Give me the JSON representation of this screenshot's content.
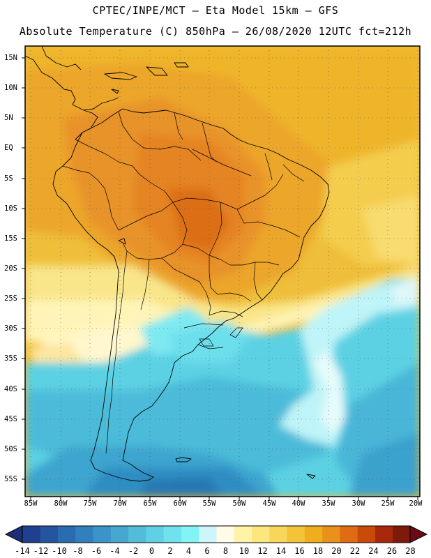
{
  "header": {
    "line1": "CPTEC/INPE/MCT –  Eta Model 15km – GFS",
    "line2": "Absolute Temperature (C) 850hPa – 26/08/2020 12UTC fct=212h"
  },
  "map": {
    "lat_labels": [
      "15N",
      "10N",
      "5N",
      "EQ",
      "5S",
      "10S",
      "15S",
      "20S",
      "25S",
      "30S",
      "35S",
      "40S",
      "45S",
      "50S",
      "55S"
    ],
    "lon_labels": [
      "85W",
      "80W",
      "75W",
      "70W",
      "65W",
      "60W",
      "55W",
      "50W",
      "45W",
      "40W",
      "35W",
      "30W",
      "25W",
      "20W"
    ]
  },
  "colorbar": {
    "labels": [
      "-14",
      "-12",
      "-10",
      "-8",
      "-6",
      "-4",
      "-2",
      "0",
      "2",
      "4",
      "6",
      "8",
      "10",
      "12",
      "14",
      "16",
      "18",
      "20",
      "22",
      "24",
      "26",
      "28"
    ],
    "colors": [
      "#1f3f8f",
      "#2456a0",
      "#2a6cb0",
      "#3180bd",
      "#3b94c8",
      "#46a8d1",
      "#52bddb",
      "#5fd0e5",
      "#6ee3ee",
      "#82f4f6",
      "#ccf6fa",
      "#fffbe6",
      "#fff3a8",
      "#fce77e",
      "#f7d65a",
      "#f3c438",
      "#efae1d",
      "#e8921b",
      "#df6c12",
      "#c94a0b",
      "#a7280a",
      "#7d1a0c"
    ],
    "left_arrow_color": "#1c2e75",
    "right_arrow_color": "#6b0a18"
  }
}
